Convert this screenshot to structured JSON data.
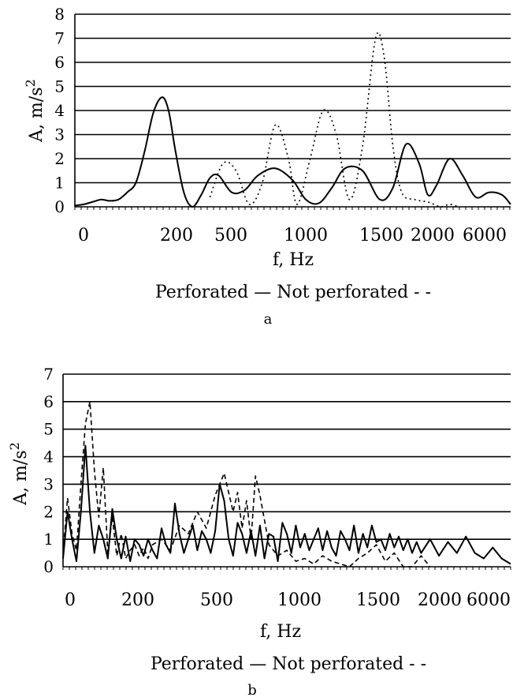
{
  "chart_data": [
    {
      "type": "line",
      "panel_label": "a",
      "xlabel": "f, Hz",
      "ylabel": "A, m/s²",
      "ylabel_main": "A, m/s",
      "ylabel_sup": "2",
      "legend_text": "Perforated —  Not perforated - -",
      "ylim": [
        0,
        8
      ],
      "yticks": [
        "0",
        "1",
        "2",
        "3",
        "4",
        "5",
        "6",
        "7",
        "8"
      ],
      "xtick_labels": [
        "0",
        "200",
        "500",
        "1000",
        "1500",
        "2000",
        "6000"
      ],
      "xlim": [
        0,
        10
      ],
      "grid": true,
      "legend_position": "below",
      "series": [
        {
          "name": "Perforated",
          "style": "solid",
          "x": [
            0,
            0.2,
            0.4,
            0.6,
            0.8,
            1.0,
            1.2,
            1.4,
            1.6,
            1.8,
            2.0,
            2.15,
            2.3,
            2.5,
            2.7,
            2.9,
            3.1,
            3.3,
            3.6,
            3.9,
            4.2,
            4.6,
            5.0,
            5.3,
            5.6,
            5.9,
            6.2,
            6.6,
            7.0,
            7.3,
            7.6,
            7.9,
            8.1,
            8.3,
            8.6,
            8.9,
            9.2,
            9.5,
            9.8,
            10.0
          ],
          "y": [
            0.05,
            0.1,
            0.2,
            0.3,
            0.25,
            0.3,
            0.6,
            1.0,
            2.3,
            3.9,
            4.55,
            4.0,
            2.4,
            0.6,
            0.0,
            0.5,
            1.2,
            1.3,
            0.6,
            0.7,
            1.3,
            1.6,
            1.1,
            0.3,
            0.15,
            0.8,
            1.6,
            1.5,
            0.3,
            0.8,
            2.6,
            1.8,
            0.5,
            0.9,
            2.0,
            1.3,
            0.4,
            0.6,
            0.5,
            0.1
          ]
        },
        {
          "name": "Not perforated",
          "style": "dashed",
          "x": [
            3.1,
            3.4,
            3.7,
            4.0,
            4.3,
            4.6,
            4.9,
            5.1,
            5.4,
            5.7,
            6.0,
            6.3,
            6.6,
            6.9,
            7.1,
            7.3,
            7.5,
            7.8,
            8.1,
            8.4,
            8.6,
            8.8
          ],
          "y": [
            0.4,
            1.8,
            1.5,
            0.1,
            1.0,
            3.4,
            2.0,
            0.1,
            2.0,
            4.0,
            3.0,
            0.3,
            2.5,
            7.0,
            6.2,
            2.5,
            0.6,
            0.3,
            0.2,
            0.0,
            0.1,
            0.0
          ]
        }
      ]
    },
    {
      "type": "line",
      "panel_label": "b",
      "xlabel": "f, Hz",
      "ylabel": "A, m/s²",
      "ylabel_main": "A, m/s",
      "ylabel_sup": "2",
      "legend_text": "Perforated —  Not perforated - -",
      "ylim": [
        0,
        7
      ],
      "yticks": [
        "0",
        "1",
        "2",
        "3",
        "4",
        "5",
        "6",
        "7"
      ],
      "xtick_labels": [
        "0",
        "200",
        "500",
        "1000",
        "1500",
        "2000",
        "6000"
      ],
      "xlim": [
        0,
        10
      ],
      "grid": true,
      "legend_position": "below",
      "series": [
        {
          "name": "Perforated",
          "style": "solid",
          "x": [
            0.0,
            0.1,
            0.2,
            0.3,
            0.4,
            0.5,
            0.6,
            0.7,
            0.8,
            0.9,
            1.0,
            1.1,
            1.2,
            1.3,
            1.4,
            1.5,
            1.6,
            1.7,
            1.8,
            1.9,
            2.0,
            2.1,
            2.2,
            2.3,
            2.4,
            2.5,
            2.6,
            2.7,
            2.8,
            2.9,
            3.0,
            3.1,
            3.2,
            3.3,
            3.4,
            3.5,
            3.6,
            3.7,
            3.8,
            3.9,
            4.0,
            4.1,
            4.2,
            4.3,
            4.4,
            4.5,
            4.6,
            4.7,
            4.8,
            4.9,
            5.0,
            5.1,
            5.2,
            5.3,
            5.4,
            5.5,
            5.6,
            5.7,
            5.8,
            5.9,
            6.0,
            6.1,
            6.2,
            6.3,
            6.4,
            6.5,
            6.6,
            6.7,
            6.8,
            6.9,
            7.0,
            7.1,
            7.2,
            7.3,
            7.4,
            7.5,
            7.6,
            7.7,
            7.8,
            7.9,
            8.0,
            8.2,
            8.4,
            8.6,
            8.8,
            9.0,
            9.2,
            9.4,
            9.6,
            9.8,
            10.0
          ],
          "y": [
            0.3,
            2.0,
            1.0,
            0.2,
            2.0,
            4.4,
            2.0,
            0.5,
            1.5,
            1.0,
            0.3,
            2.1,
            1.0,
            0.3,
            1.1,
            0.2,
            1.0,
            0.8,
            0.4,
            1.0,
            0.6,
            0.3,
            1.4,
            0.8,
            0.5,
            2.3,
            1.2,
            0.5,
            1.0,
            1.5,
            0.6,
            1.3,
            1.0,
            0.5,
            1.3,
            3.0,
            2.4,
            1.0,
            0.4,
            1.6,
            1.2,
            0.5,
            1.3,
            0.4,
            1.5,
            0.3,
            1.2,
            1.1,
            0.2,
            1.6,
            1.2,
            0.5,
            1.5,
            0.7,
            1.2,
            0.6,
            1.0,
            1.4,
            0.6,
            1.3,
            0.7,
            0.4,
            1.3,
            1.0,
            0.6,
            1.5,
            0.5,
            1.2,
            0.7,
            1.5,
            0.9,
            1.0,
            0.6,
            1.2,
            0.7,
            1.1,
            0.6,
            1.0,
            0.5,
            0.9,
            0.5,
            1.0,
            0.4,
            0.9,
            0.5,
            1.1,
            0.5,
            0.3,
            0.7,
            0.3,
            0.1
          ]
        },
        {
          "name": "Not perforated",
          "style": "dashed",
          "x": [
            0.0,
            0.1,
            0.2,
            0.3,
            0.4,
            0.5,
            0.6,
            0.7,
            0.8,
            0.9,
            1.0,
            1.1,
            1.2,
            1.3,
            1.4,
            1.5,
            1.6,
            1.7,
            1.8,
            1.9,
            2.0,
            2.2,
            2.4,
            2.6,
            2.8,
            3.0,
            3.2,
            3.4,
            3.6,
            3.8,
            3.9,
            4.0,
            4.1,
            4.2,
            4.3,
            4.4,
            4.6,
            4.8,
            5.0,
            5.2,
            5.4,
            5.6,
            5.8,
            6.0,
            6.2,
            6.4,
            6.6,
            6.8,
            7.0,
            7.2,
            7.4,
            7.6,
            7.8,
            8.0,
            8.2
          ],
          "y": [
            0.5,
            2.5,
            1.2,
            0.6,
            3.0,
            5.2,
            6.0,
            3.5,
            1.8,
            3.6,
            0.5,
            1.8,
            0.4,
            1.2,
            0.3,
            0.6,
            0.8,
            0.4,
            0.7,
            0.3,
            0.8,
            1.0,
            0.6,
            1.5,
            1.2,
            2.0,
            1.4,
            2.6,
            3.4,
            2.0,
            2.7,
            1.4,
            2.4,
            1.0,
            3.3,
            2.6,
            0.8,
            0.4,
            0.6,
            0.2,
            0.3,
            0.1,
            0.4,
            0.2,
            0.1,
            0.0,
            0.3,
            0.5,
            0.8,
            0.2,
            0.5,
            0.0,
            0.0,
            0.4,
            0.0
          ]
        }
      ]
    }
  ]
}
